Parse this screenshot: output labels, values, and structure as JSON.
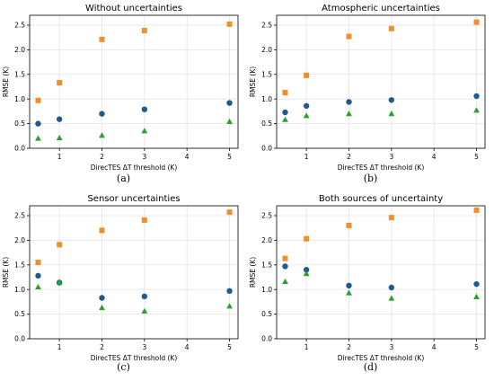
{
  "colors": {
    "square": "#f28e2b",
    "circle": "#1f5a8c",
    "triangle": "#2ca02c",
    "grid": "#e3e3e3"
  },
  "chart_data": [
    {
      "type": "scatter",
      "title": "Without uncertainties",
      "xlabel": "DirecTES ΔT threshold (K)",
      "ylabel": "RMSE (K)",
      "caption": "(a)",
      "xlim": [
        0.3,
        5.2
      ],
      "ylim": [
        0,
        2.7
      ],
      "xticks": [
        1,
        2,
        3,
        4,
        5
      ],
      "yticks": [
        0.0,
        0.5,
        1.0,
        1.5,
        2.0,
        2.5
      ],
      "grid": true,
      "x": [
        0.5,
        1,
        2,
        3,
        5
      ],
      "series": [
        {
          "marker": "square",
          "values": [
            0.97,
            1.33,
            2.21,
            2.39,
            2.52
          ]
        },
        {
          "marker": "circle",
          "values": [
            0.5,
            0.59,
            0.7,
            0.79,
            0.92
          ]
        },
        {
          "marker": "triangle",
          "values": [
            0.2,
            0.21,
            0.26,
            0.35,
            0.54
          ]
        }
      ]
    },
    {
      "type": "scatter",
      "title": "Atmospheric uncertainties",
      "xlabel": "DirecTES ΔT threshold (K)",
      "ylabel": "RMSE (K)",
      "caption": "(b)",
      "xlim": [
        0.3,
        5.2
      ],
      "ylim": [
        0,
        2.7
      ],
      "xticks": [
        1,
        2,
        3,
        4,
        5
      ],
      "yticks": [
        0.0,
        0.5,
        1.0,
        1.5,
        2.0,
        2.5
      ],
      "grid": true,
      "x": [
        0.5,
        1,
        2,
        3,
        5
      ],
      "series": [
        {
          "marker": "square",
          "values": [
            1.13,
            1.48,
            2.27,
            2.43,
            2.56
          ]
        },
        {
          "marker": "circle",
          "values": [
            0.73,
            0.86,
            0.94,
            0.98,
            1.06
          ]
        },
        {
          "marker": "triangle",
          "values": [
            0.58,
            0.66,
            0.7,
            0.7,
            0.77
          ]
        }
      ]
    },
    {
      "type": "scatter",
      "title": "Sensor uncertainties",
      "xlabel": "DirecTES ΔT threshold (K)",
      "ylabel": "RMSE (K)",
      "caption": "(c)",
      "xlim": [
        0.3,
        5.2
      ],
      "ylim": [
        0,
        2.7
      ],
      "xticks": [
        1,
        2,
        3,
        4,
        5
      ],
      "yticks": [
        0.0,
        0.5,
        1.0,
        1.5,
        2.0,
        2.5
      ],
      "grid": true,
      "x": [
        0.5,
        1,
        2,
        3,
        5
      ],
      "series": [
        {
          "marker": "square",
          "values": [
            1.55,
            1.91,
            2.2,
            2.41,
            2.57
          ]
        },
        {
          "marker": "circle",
          "values": [
            1.28,
            1.14,
            0.83,
            0.86,
            0.97
          ]
        },
        {
          "marker": "triangle",
          "values": [
            1.05,
            1.15,
            0.63,
            0.56,
            0.66
          ]
        }
      ]
    },
    {
      "type": "scatter",
      "title": "Both sources of uncertainty",
      "xlabel": "DirecTES ΔT threshold (K)",
      "ylabel": "RMSE (K)",
      "caption": "(d)",
      "xlim": [
        0.3,
        5.2
      ],
      "ylim": [
        0,
        2.7
      ],
      "xticks": [
        1,
        2,
        3,
        4,
        5
      ],
      "yticks": [
        0.0,
        0.5,
        1.0,
        1.5,
        2.0,
        2.5
      ],
      "grid": true,
      "x": [
        0.5,
        1,
        2,
        3,
        5
      ],
      "series": [
        {
          "marker": "square",
          "values": [
            1.63,
            2.03,
            2.3,
            2.46,
            2.61
          ]
        },
        {
          "marker": "circle",
          "values": [
            1.47,
            1.4,
            1.08,
            1.04,
            1.11
          ]
        },
        {
          "marker": "triangle",
          "values": [
            1.16,
            1.32,
            0.93,
            0.82,
            0.85
          ]
        }
      ]
    }
  ]
}
